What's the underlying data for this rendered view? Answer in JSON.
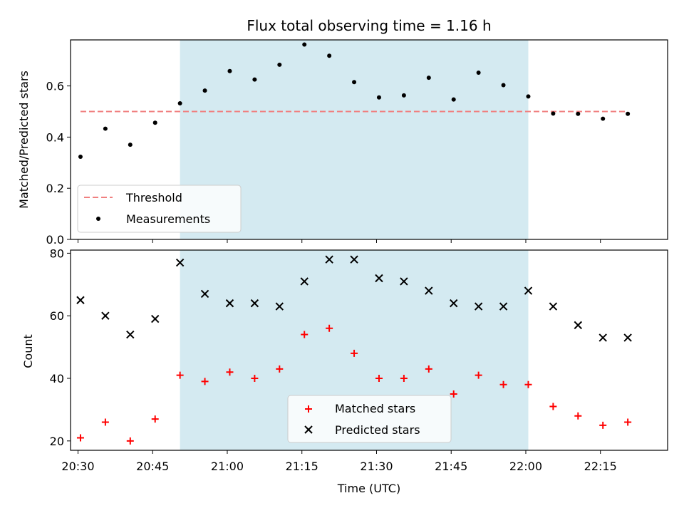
{
  "chart_data": [
    {
      "type": "scatter",
      "title": "Flux total observing time = 1.16 h",
      "xlabel": "",
      "ylabel": "Matched/Predicted stars",
      "xlim": [
        "20:28:30",
        "22:28:30"
      ],
      "ylim": [
        0,
        0.78
      ],
      "yticks": [
        0.0,
        0.2,
        0.4,
        0.6
      ],
      "ytick_labels": [
        "0.0",
        "0.2",
        "0.4",
        "0.6"
      ],
      "highlight_span": {
        "x_start": "20:50:30",
        "x_end": "22:00:30",
        "color": "#d4eaf1"
      },
      "x": [
        "20:30:30",
        "20:35:30",
        "20:40:30",
        "20:45:30",
        "20:50:30",
        "20:55:30",
        "21:00:30",
        "21:05:30",
        "21:10:30",
        "21:15:30",
        "21:20:30",
        "21:25:30",
        "21:30:30",
        "21:35:30",
        "21:40:30",
        "21:45:30",
        "21:50:30",
        "21:55:30",
        "22:00:30",
        "22:05:30",
        "22:10:30",
        "22:15:30",
        "22:20:30"
      ],
      "threshold": {
        "name": "Threshold",
        "y": 0.5,
        "x_start": "20:30:30",
        "x_end": "22:20:30",
        "color": "#f08080"
      },
      "series": [
        {
          "name": "Measurements",
          "color": "#000000",
          "marker": "dot",
          "values": [
            0.323,
            0.433,
            0.37,
            0.456,
            0.532,
            0.582,
            0.658,
            0.625,
            0.683,
            0.762,
            0.718,
            0.615,
            0.555,
            0.563,
            0.632,
            0.547,
            0.652,
            0.603,
            0.559,
            0.492,
            0.491,
            0.472,
            0.491
          ]
        }
      ],
      "grid": false,
      "legend": "lower-left"
    },
    {
      "type": "scatter",
      "title": "",
      "xlabel": "Time (UTC)",
      "ylabel": "Count",
      "xlim": [
        "20:28:30",
        "22:28:30"
      ],
      "ylim": [
        17,
        81
      ],
      "xticks": [
        "20:30",
        "20:45",
        "21:00",
        "21:15",
        "21:30",
        "21:45",
        "22:00",
        "22:15"
      ],
      "yticks": [
        20,
        40,
        60,
        80
      ],
      "ytick_labels": [
        "20",
        "40",
        "60",
        "80"
      ],
      "highlight_span": {
        "x_start": "20:50:30",
        "x_end": "22:00:30",
        "color": "#d4eaf1"
      },
      "x": [
        "20:30:30",
        "20:35:30",
        "20:40:30",
        "20:45:30",
        "20:50:30",
        "20:55:30",
        "21:00:30",
        "21:05:30",
        "21:10:30",
        "21:15:30",
        "21:20:30",
        "21:25:30",
        "21:30:30",
        "21:35:30",
        "21:40:30",
        "21:45:30",
        "21:50:30",
        "21:55:30",
        "22:00:30",
        "22:05:30",
        "22:10:30",
        "22:15:30",
        "22:20:30"
      ],
      "series": [
        {
          "name": "Matched stars",
          "color": "#ff0000",
          "marker": "plus",
          "values": [
            21,
            26,
            20,
            27,
            41,
            39,
            42,
            40,
            43,
            54,
            56,
            48,
            40,
            40,
            43,
            35,
            41,
            38,
            38,
            31,
            28,
            25,
            26
          ]
        },
        {
          "name": "Predicted stars",
          "color": "#000000",
          "marker": "x",
          "values": [
            65,
            60,
            54,
            59,
            77,
            67,
            64,
            64,
            63,
            71,
            78,
            78,
            72,
            71,
            68,
            64,
            63,
            63,
            68,
            63,
            57,
            53,
            53
          ]
        }
      ],
      "grid": false,
      "legend": "lower-center"
    }
  ]
}
